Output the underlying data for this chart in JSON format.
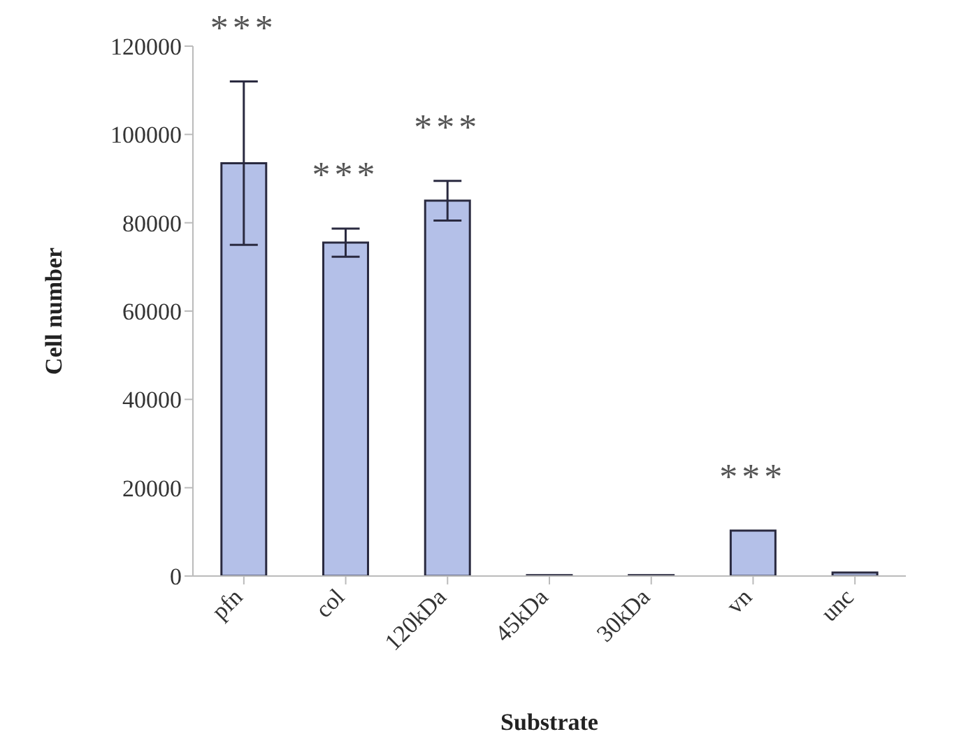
{
  "chart_data": {
    "type": "bar",
    "xlabel": "Substrate",
    "ylabel": "Cell number",
    "categories": [
      "pfn",
      "col",
      "120kDa",
      "45kDa",
      "30kDa",
      "vn",
      "unc"
    ],
    "values": [
      93500,
      75500,
      85000,
      200,
      200,
      10300,
      800
    ],
    "errors": [
      18500,
      3200,
      4500,
      null,
      null,
      null,
      null
    ],
    "color": "#b4c0e8",
    "ylim": [
      0,
      120000
    ],
    "yticks": [
      0,
      20000,
      40000,
      60000,
      80000,
      100000,
      120000
    ],
    "grid": false,
    "value_labels": [
      "***",
      "***",
      "***",
      null,
      null,
      "***",
      null
    ]
  }
}
